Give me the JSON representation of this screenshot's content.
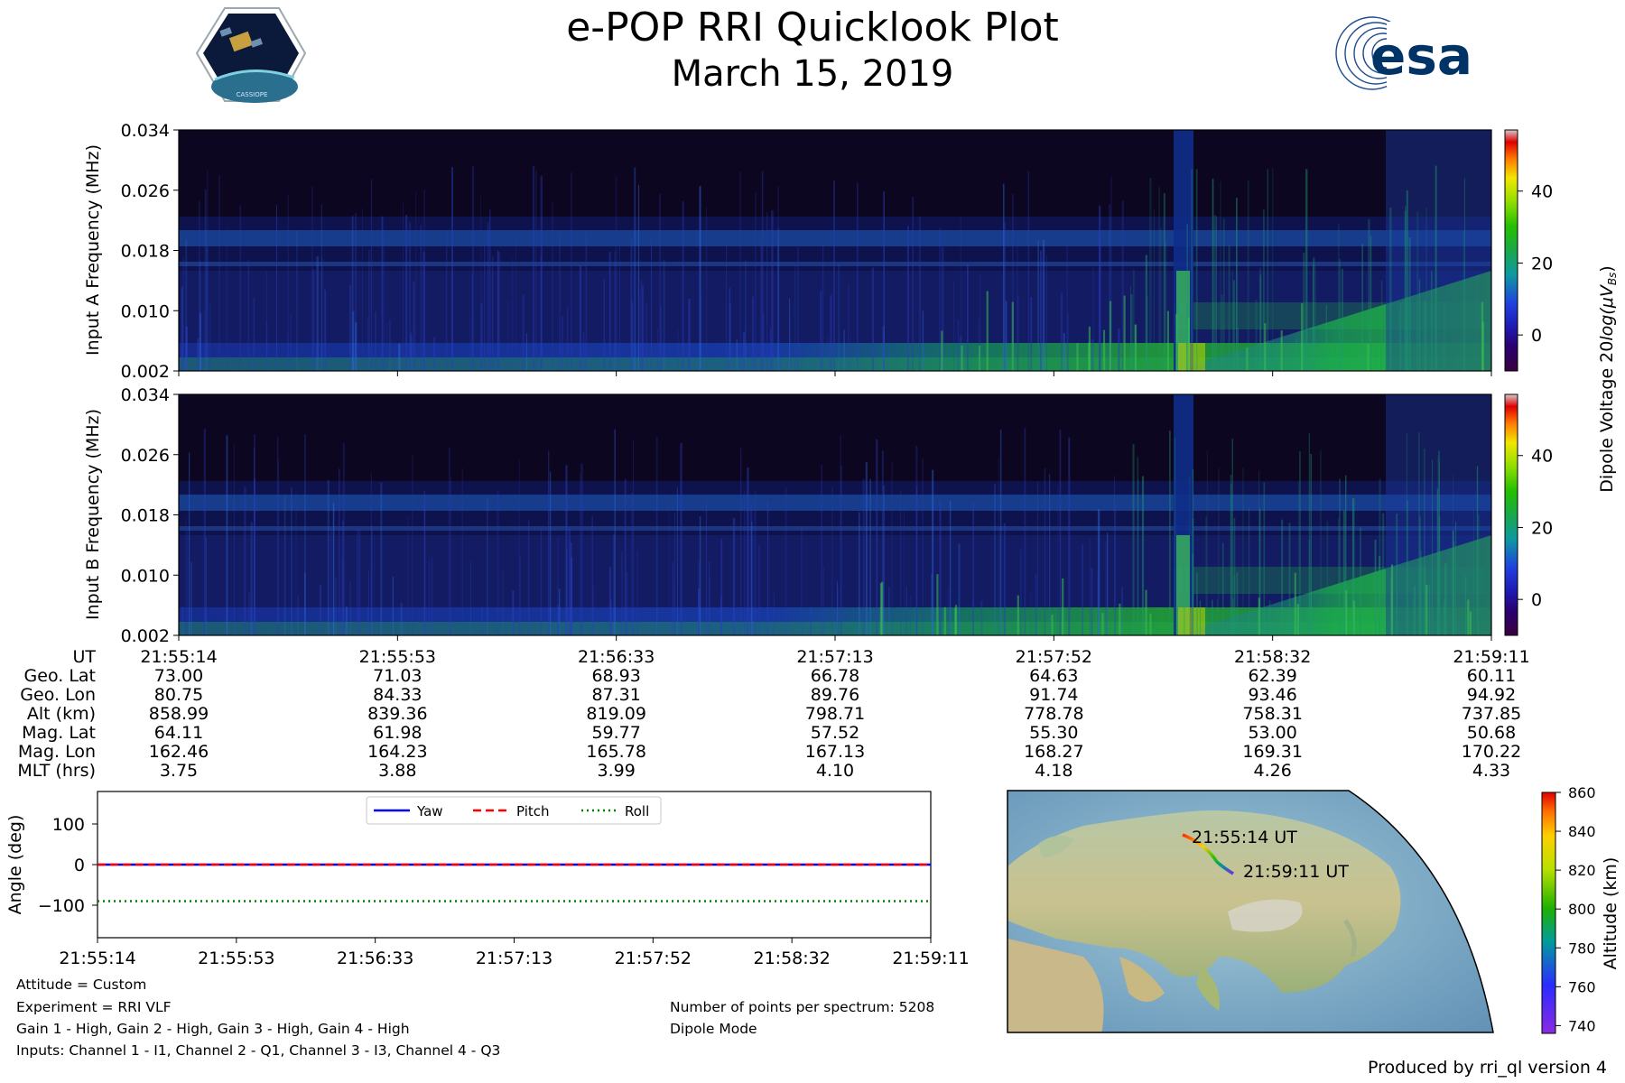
{
  "header": {
    "title": "e-POP RRI Quicklook Plot",
    "date": "March 15, 2019",
    "cassiope_logo_text": "CASSIOPE",
    "esa_logo_text": "esa"
  },
  "colors": {
    "yaw": "#0000ff",
    "pitch": "#ff0000",
    "roll": "#008000",
    "track_start": "#ff2a00",
    "track_end": "#7a2be0"
  },
  "chart_data": [
    {
      "type": "heatmap",
      "id": "input-a",
      "ylabel": "Input A Frequency (MHz)",
      "yticks": [
        "0.002",
        "0.010",
        "0.018",
        "0.026",
        "0.034"
      ],
      "ylim": [
        0.002,
        0.034
      ],
      "colorbar": {
        "label": "Dipole Voltage 20log(μV_Bs)",
        "label_main": "Dipole Voltage 20",
        "label_log": "log(",
        "label_mu": "μ",
        "label_v": "V",
        "label_sub": "Bs",
        "label_close": ")",
        "ticks": [
          "0",
          "20",
          "40"
        ],
        "range": [
          -10,
          57
        ]
      }
    },
    {
      "type": "heatmap",
      "id": "input-b",
      "ylabel": "Input B Frequency (MHz)",
      "yticks": [
        "0.002",
        "0.010",
        "0.018",
        "0.026",
        "0.034"
      ],
      "ylim": [
        0.002,
        0.034
      ],
      "colorbar": {
        "ticks": [
          "0",
          "20",
          "40"
        ],
        "range": [
          -10,
          57
        ]
      }
    },
    {
      "type": "line",
      "id": "attitude",
      "ylabel": "Angle (deg)",
      "yticks": [
        "100",
        "0",
        "−100"
      ],
      "ylim": [
        -180,
        180
      ],
      "x": [
        "21:55:14",
        "21:55:53",
        "21:56:33",
        "21:57:13",
        "21:57:52",
        "21:58:32",
        "21:59:11"
      ],
      "series": [
        {
          "name": "Yaw",
          "values": [
            0,
            0,
            0,
            0,
            0,
            0,
            0
          ]
        },
        {
          "name": "Pitch",
          "values": [
            0,
            0,
            0,
            0,
            0,
            0,
            0
          ]
        },
        {
          "name": "Roll",
          "values": [
            -90,
            -90,
            -90,
            -90,
            -90,
            -90,
            -90
          ]
        }
      ],
      "legend": "top-center"
    }
  ],
  "ephemeris": {
    "row_labels": [
      "UT",
      "Geo. Lat",
      "Geo. Lon",
      "Alt (km)",
      "Mag. Lat",
      "Mag. Lon",
      "MLT (hrs)"
    ],
    "columns": [
      [
        "21:55:14",
        "73.00",
        "80.75",
        "858.99",
        "64.11",
        "162.46",
        "3.75"
      ],
      [
        "21:55:53",
        "71.03",
        "84.33",
        "839.36",
        "61.98",
        "164.23",
        "3.88"
      ],
      [
        "21:56:33",
        "68.93",
        "87.31",
        "819.09",
        "59.77",
        "165.78",
        "3.99"
      ],
      [
        "21:57:13",
        "66.78",
        "89.76",
        "798.71",
        "57.52",
        "167.13",
        "4.10"
      ],
      [
        "21:57:52",
        "64.63",
        "91.74",
        "778.78",
        "55.30",
        "168.27",
        "4.18"
      ],
      [
        "21:58:32",
        "62.39",
        "93.46",
        "758.31",
        "53.00",
        "169.31",
        "4.26"
      ],
      [
        "21:59:11",
        "60.11",
        "94.92",
        "737.85",
        "50.68",
        "170.22",
        "4.33"
      ]
    ]
  },
  "map": {
    "start_label": "21:55:14 UT",
    "end_label": "21:59:11 UT",
    "altitude_colorbar": {
      "label": "Altitude (km)",
      "ticks": [
        "740",
        "760",
        "780",
        "800",
        "820",
        "840",
        "860"
      ],
      "range": [
        736,
        860
      ]
    }
  },
  "info": {
    "attitude": "Attitude = Custom",
    "experiment": "Experiment = RRI VLF",
    "gains": "Gain 1 - High, Gain 2 - High, Gain 3 - High, Gain 4 - High",
    "inputs": "Inputs: Channel 1 - I1, Channel 2 - Q1, Channel 3 - I3, Channel 4 - Q3",
    "points": "Number of points per spectrum: 5208",
    "mode": "Dipole Mode"
  },
  "footer": {
    "produced_by": "Produced by rri_ql version 4"
  }
}
